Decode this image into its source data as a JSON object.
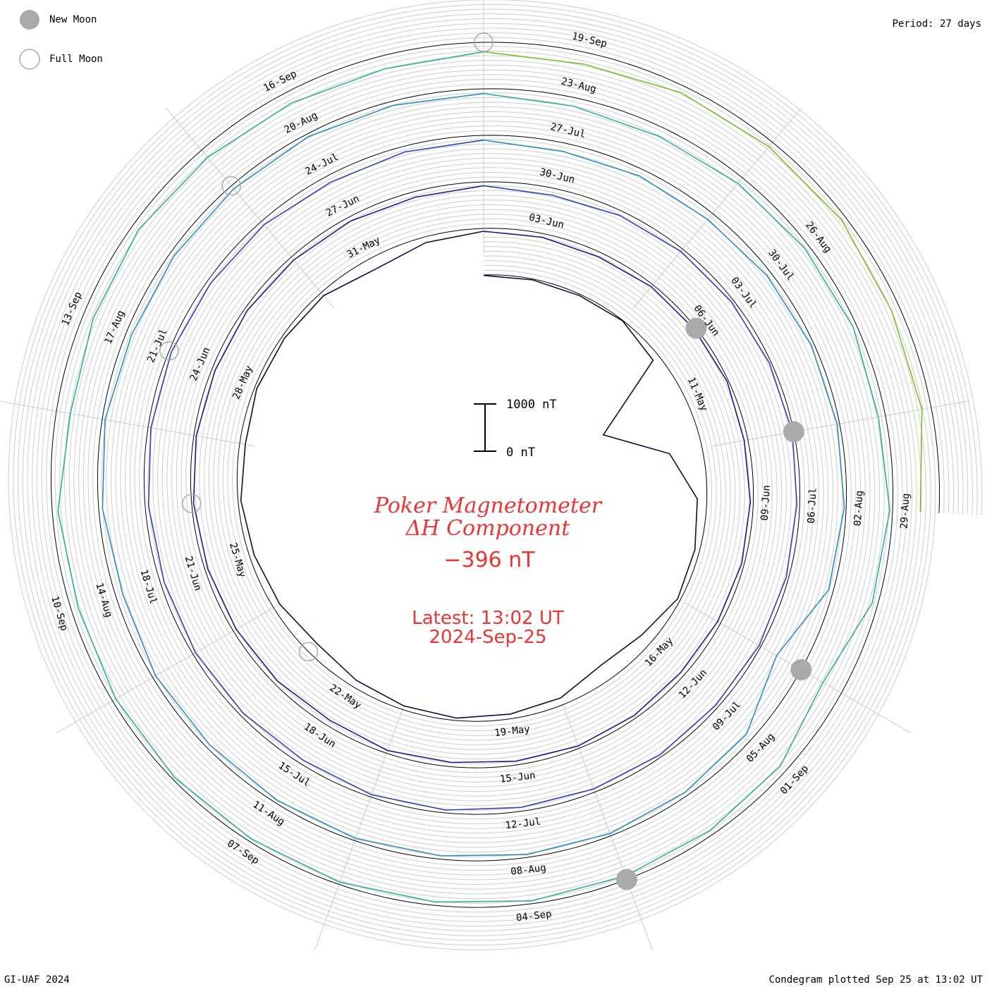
{
  "header": {
    "period_label": "Period: 27 days"
  },
  "legend": {
    "new_moon_label": "New Moon",
    "full_moon_label": "Full Moon",
    "new_moon_color": "#aaaaaa",
    "full_moon_color": "#aaaaaa"
  },
  "footer": {
    "left": "GI-UAF 2024",
    "right": "Condegram plotted Sep 25 at 13:02 UT"
  },
  "center": {
    "title_line1": "Poker Magnetometer",
    "title_line2": "ΔH Component",
    "current_value": "−396 nT",
    "latest_line1": "Latest: 13:02 UT",
    "latest_line2": "2024-Sep-25",
    "text_color": "#ee3333"
  },
  "scale_bar": {
    "top_label": "1000 nT",
    "bottom_label": "0 nT"
  },
  "chart_data": {
    "type": "line",
    "plot_kind": "spiral condegram",
    "period_days": 27,
    "start_date": "2024-05-06",
    "end_date": "2024-09-25",
    "units": "nT",
    "series_colors": [
      "#100a3a",
      "#24178a",
      "#3040b8",
      "#2a8ec0",
      "#30b090",
      "#78c030",
      "#b8b820",
      "#c09018",
      "#c05010",
      "#c02010"
    ],
    "date_labels": [
      "11-May",
      "16-May",
      "19-May",
      "22-May",
      "25-May",
      "28-May",
      "31-May",
      "03-Jun",
      "06-Jun",
      "09-Jun",
      "12-Jun",
      "15-Jun",
      "18-Jun",
      "21-Jun",
      "24-Jun",
      "27-Jun",
      "30-Jun",
      "03-Jul",
      "06-Jul",
      "09-Jul",
      "12-Jul",
      "15-Jul",
      "18-Jul",
      "21-Jul",
      "24-Jul",
      "27-Jul",
      "30-Jul",
      "02-Aug",
      "05-Aug",
      "08-Aug",
      "11-Aug",
      "14-Aug",
      "17-Aug",
      "20-Aug",
      "23-Aug",
      "26-Aug",
      "29-Aug",
      "01-Sep",
      "04-Sep",
      "07-Sep",
      "10-Sep",
      "13-Sep",
      "16-Sep",
      "19-Sep"
    ],
    "new_moons": [
      "2024-06-06",
      "2024-07-05",
      "2024-08-04",
      "2024-09-03"
    ],
    "full_moons": [
      "2024-05-23",
      "2024-06-22",
      "2024-07-21",
      "2024-08-19",
      "2024-09-18"
    ],
    "daily_dH_nT": [
      {
        "date": "2024-05-06",
        "dH": -10
      },
      {
        "date": "2024-05-07",
        "dH": -20
      },
      {
        "date": "2024-05-08",
        "dH": -30
      },
      {
        "date": "2024-05-09",
        "dH": -10
      },
      {
        "date": "2024-05-10",
        "dH": -150
      },
      {
        "date": "2024-05-11",
        "dH": -1900
      },
      {
        "date": "2024-05-12",
        "dH": -700
      },
      {
        "date": "2024-05-13",
        "dH": -200
      },
      {
        "date": "2024-05-14",
        "dH": -100
      },
      {
        "date": "2024-05-15",
        "dH": -60
      },
      {
        "date": "2024-05-16",
        "dH": -250
      },
      {
        "date": "2024-05-17",
        "dH": -350
      },
      {
        "date": "2024-05-18",
        "dH": -150
      },
      {
        "date": "2024-05-19",
        "dH": -100
      },
      {
        "date": "2024-05-20",
        "dH": -50
      },
      {
        "date": "2024-05-21",
        "dH": -80
      },
      {
        "date": "2024-05-22",
        "dH": -150
      },
      {
        "date": "2024-05-23",
        "dH": -250
      },
      {
        "date": "2024-05-24",
        "dH": -150
      },
      {
        "date": "2024-05-25",
        "dH": -100
      },
      {
        "date": "2024-05-26",
        "dH": -60
      },
      {
        "date": "2024-05-27",
        "dH": -120
      },
      {
        "date": "2024-05-28",
        "dH": -50
      },
      {
        "date": "2024-05-29",
        "dH": -60
      },
      {
        "date": "2024-05-30",
        "dH": -80
      },
      {
        "date": "2024-05-31",
        "dH": -250
      },
      {
        "date": "2024-06-01",
        "dH": -120
      },
      {
        "date": "2024-06-02",
        "dH": -60
      },
      {
        "date": "2024-06-03",
        "dH": -80
      },
      {
        "date": "2024-06-04",
        "dH": -100
      },
      {
        "date": "2024-06-05",
        "dH": -50
      },
      {
        "date": "2024-06-06",
        "dH": -40
      },
      {
        "date": "2024-06-07",
        "dH": -30
      },
      {
        "date": "2024-06-08",
        "dH": -80
      },
      {
        "date": "2024-06-09",
        "dH": -60
      },
      {
        "date": "2024-06-10",
        "dH": -50
      },
      {
        "date": "2024-06-11",
        "dH": -70
      },
      {
        "date": "2024-06-12",
        "dH": -90
      },
      {
        "date": "2024-06-13",
        "dH": -60
      },
      {
        "date": "2024-06-14",
        "dH": -50
      },
      {
        "date": "2024-06-15",
        "dH": -80
      },
      {
        "date": "2024-06-16",
        "dH": -90
      },
      {
        "date": "2024-06-17",
        "dH": -60
      },
      {
        "date": "2024-06-18",
        "dH": -120
      },
      {
        "date": "2024-06-19",
        "dH": -80
      },
      {
        "date": "2024-06-20",
        "dH": -70
      },
      {
        "date": "2024-06-21",
        "dH": -60
      },
      {
        "date": "2024-06-22",
        "dH": -40
      },
      {
        "date": "2024-06-23",
        "dH": -50
      },
      {
        "date": "2024-06-24",
        "dH": -70
      },
      {
        "date": "2024-06-25",
        "dH": -60
      },
      {
        "date": "2024-06-26",
        "dH": -80
      },
      {
        "date": "2024-06-27",
        "dH": -90
      },
      {
        "date": "2024-06-28",
        "dH": -120
      },
      {
        "date": "2024-06-29",
        "dH": -80
      },
      {
        "date": "2024-06-30",
        "dH": -150
      },
      {
        "date": "2024-07-01",
        "dH": -100
      },
      {
        "date": "2024-07-02",
        "dH": -60
      },
      {
        "date": "2024-07-03",
        "dH": -50
      },
      {
        "date": "2024-07-04",
        "dH": -40
      },
      {
        "date": "2024-07-05",
        "dH": -30
      },
      {
        "date": "2024-07-06",
        "dH": -60
      },
      {
        "date": "2024-07-07",
        "dH": -50
      },
      {
        "date": "2024-07-08",
        "dH": -40
      },
      {
        "date": "2024-07-09",
        "dH": -60
      },
      {
        "date": "2024-07-10",
        "dH": -50
      },
      {
        "date": "2024-07-11",
        "dH": -70
      },
      {
        "date": "2024-07-12",
        "dH": -80
      },
      {
        "date": "2024-07-13",
        "dH": -60
      },
      {
        "date": "2024-07-14",
        "dH": -50
      },
      {
        "date": "2024-07-15",
        "dH": -90
      },
      {
        "date": "2024-07-16",
        "dH": -70
      },
      {
        "date": "2024-07-17",
        "dH": -60
      },
      {
        "date": "2024-07-18",
        "dH": -80
      },
      {
        "date": "2024-07-19",
        "dH": -70
      },
      {
        "date": "2024-07-20",
        "dH": -60
      },
      {
        "date": "2024-07-21",
        "dH": -50
      },
      {
        "date": "2024-07-22",
        "dH": -80
      },
      {
        "date": "2024-07-23",
        "dH": -90
      },
      {
        "date": "2024-07-24",
        "dH": -150
      },
      {
        "date": "2024-07-25",
        "dH": -120
      },
      {
        "date": "2024-07-26",
        "dH": -100
      },
      {
        "date": "2024-07-27",
        "dH": -180
      },
      {
        "date": "2024-07-28",
        "dH": -150
      },
      {
        "date": "2024-07-29",
        "dH": -160
      },
      {
        "date": "2024-07-30",
        "dH": -100
      },
      {
        "date": "2024-07-31",
        "dH": -60
      },
      {
        "date": "2024-08-01",
        "dH": -50
      },
      {
        "date": "2024-08-02",
        "dH": -40
      },
      {
        "date": "2024-08-03",
        "dH": -100
      },
      {
        "date": "2024-08-04",
        "dH": -600
      },
      {
        "date": "2024-08-05",
        "dH": -150
      },
      {
        "date": "2024-08-06",
        "dH": -80
      },
      {
        "date": "2024-08-07",
        "dH": -50
      },
      {
        "date": "2024-08-08",
        "dH": -60
      },
      {
        "date": "2024-08-09",
        "dH": -70
      },
      {
        "date": "2024-08-10",
        "dH": -50
      },
      {
        "date": "2024-08-11",
        "dH": -60
      },
      {
        "date": "2024-08-12",
        "dH": -80
      },
      {
        "date": "2024-08-13",
        "dH": -70
      },
      {
        "date": "2024-08-14",
        "dH": -150
      },
      {
        "date": "2024-08-15",
        "dH": -80
      },
      {
        "date": "2024-08-16",
        "dH": -60
      },
      {
        "date": "2024-08-17",
        "dH": -120
      },
      {
        "date": "2024-08-18",
        "dH": -100
      },
      {
        "date": "2024-08-19",
        "dH": -80
      },
      {
        "date": "2024-08-20",
        "dH": -60
      },
      {
        "date": "2024-08-21",
        "dH": -90
      },
      {
        "date": "2024-08-22",
        "dH": -100
      },
      {
        "date": "2024-08-23",
        "dH": -180
      },
      {
        "date": "2024-08-24",
        "dH": -200
      },
      {
        "date": "2024-08-25",
        "dH": -150
      },
      {
        "date": "2024-08-26",
        "dH": -100
      },
      {
        "date": "2024-08-27",
        "dH": -80
      },
      {
        "date": "2024-08-28",
        "dH": -150
      },
      {
        "date": "2024-08-29",
        "dH": -60
      },
      {
        "date": "2024-08-30",
        "dH": -120
      },
      {
        "date": "2024-08-31",
        "dH": -450
      },
      {
        "date": "2024-09-01",
        "dH": -150
      },
      {
        "date": "2024-09-02",
        "dH": -100
      },
      {
        "date": "2024-09-03",
        "dH": -80
      },
      {
        "date": "2024-09-04",
        "dH": -60
      },
      {
        "date": "2024-09-05",
        "dH": -70
      },
      {
        "date": "2024-09-06",
        "dH": -50
      },
      {
        "date": "2024-09-07",
        "dH": -60
      },
      {
        "date": "2024-09-08",
        "dH": -50
      },
      {
        "date": "2024-09-09",
        "dH": -80
      },
      {
        "date": "2024-09-10",
        "dH": -150
      },
      {
        "date": "2024-09-11",
        "dH": -120
      },
      {
        "date": "2024-09-12",
        "dH": -300
      },
      {
        "date": "2024-09-13",
        "dH": -220
      },
      {
        "date": "2024-09-14",
        "dH": -150
      },
      {
        "date": "2024-09-15",
        "dH": -200
      },
      {
        "date": "2024-09-16",
        "dH": -250
      },
      {
        "date": "2024-09-17",
        "dH": -280
      },
      {
        "date": "2024-09-18",
        "dH": -200
      },
      {
        "date": "2024-09-19",
        "dH": -250
      },
      {
        "date": "2024-09-20",
        "dH": -150
      },
      {
        "date": "2024-09-21",
        "dH": -120
      },
      {
        "date": "2024-09-22",
        "dH": -100
      },
      {
        "date": "2024-09-23",
        "dH": -180
      },
      {
        "date": "2024-09-24",
        "dH": -200
      },
      {
        "date": "2024-09-25",
        "dH": -396
      }
    ]
  }
}
